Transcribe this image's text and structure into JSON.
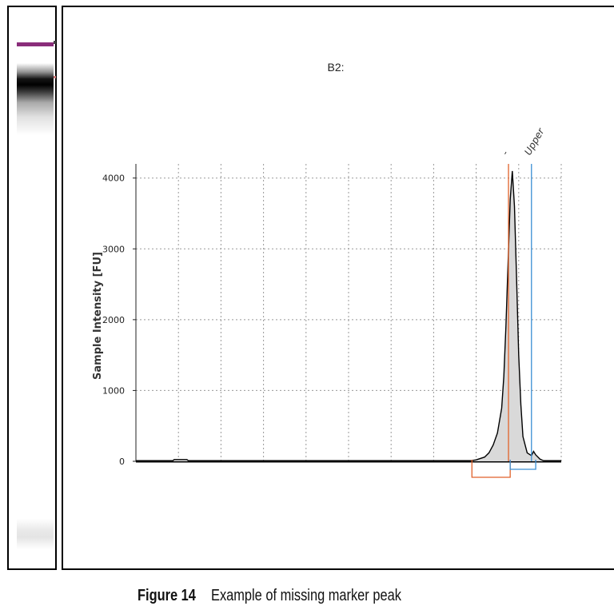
{
  "gel": {
    "marker_color": "#8a2d7a"
  },
  "chart_data": {
    "type": "line",
    "title": "B2:",
    "ylabel": "Sample Intensity [FU]",
    "xlabel": "",
    "ylim": [
      0,
      4200
    ],
    "yticks": [
      "0",
      "1000",
      "2000",
      "3000",
      "4000"
    ],
    "ytick_values": [
      0,
      1000,
      2000,
      3000,
      4000
    ],
    "grid": true,
    "xlim": [
      0,
      100
    ],
    "series": [
      {
        "color": "#000000",
        "fill": "#d9d9d9",
        "x": [
          0,
          8.5,
          9.0,
          12.0,
          12.5,
          60,
          78,
          80,
          82,
          83,
          84,
          85,
          86,
          86.5,
          87,
          87.5,
          88,
          88.5,
          89,
          89.5,
          90,
          90.5,
          91,
          92,
          93,
          93.5,
          94,
          95,
          96,
          100
        ],
        "values": [
          0,
          0,
          25,
          25,
          0,
          0,
          0,
          20,
          60,
          120,
          230,
          400,
          750,
          1200,
          1900,
          2800,
          3700,
          4100,
          3600,
          2600,
          1500,
          800,
          350,
          120,
          80,
          140,
          90,
          30,
          5,
          0
        ]
      }
    ],
    "annotations": [
      {
        "label": "-",
        "x": 87.6,
        "color": "#e0622a"
      },
      {
        "label": "Upper",
        "x": 93.0,
        "color": "#3a8fd4"
      }
    ],
    "peak_ranges": [
      {
        "x0": 79,
        "x1": 88,
        "color": "#e0622a"
      },
      {
        "x0": 88,
        "x1": 94,
        "color": "#3a8fd4"
      }
    ]
  },
  "caption": {
    "label": "Figure 14",
    "text": "Example of missing marker peak"
  }
}
